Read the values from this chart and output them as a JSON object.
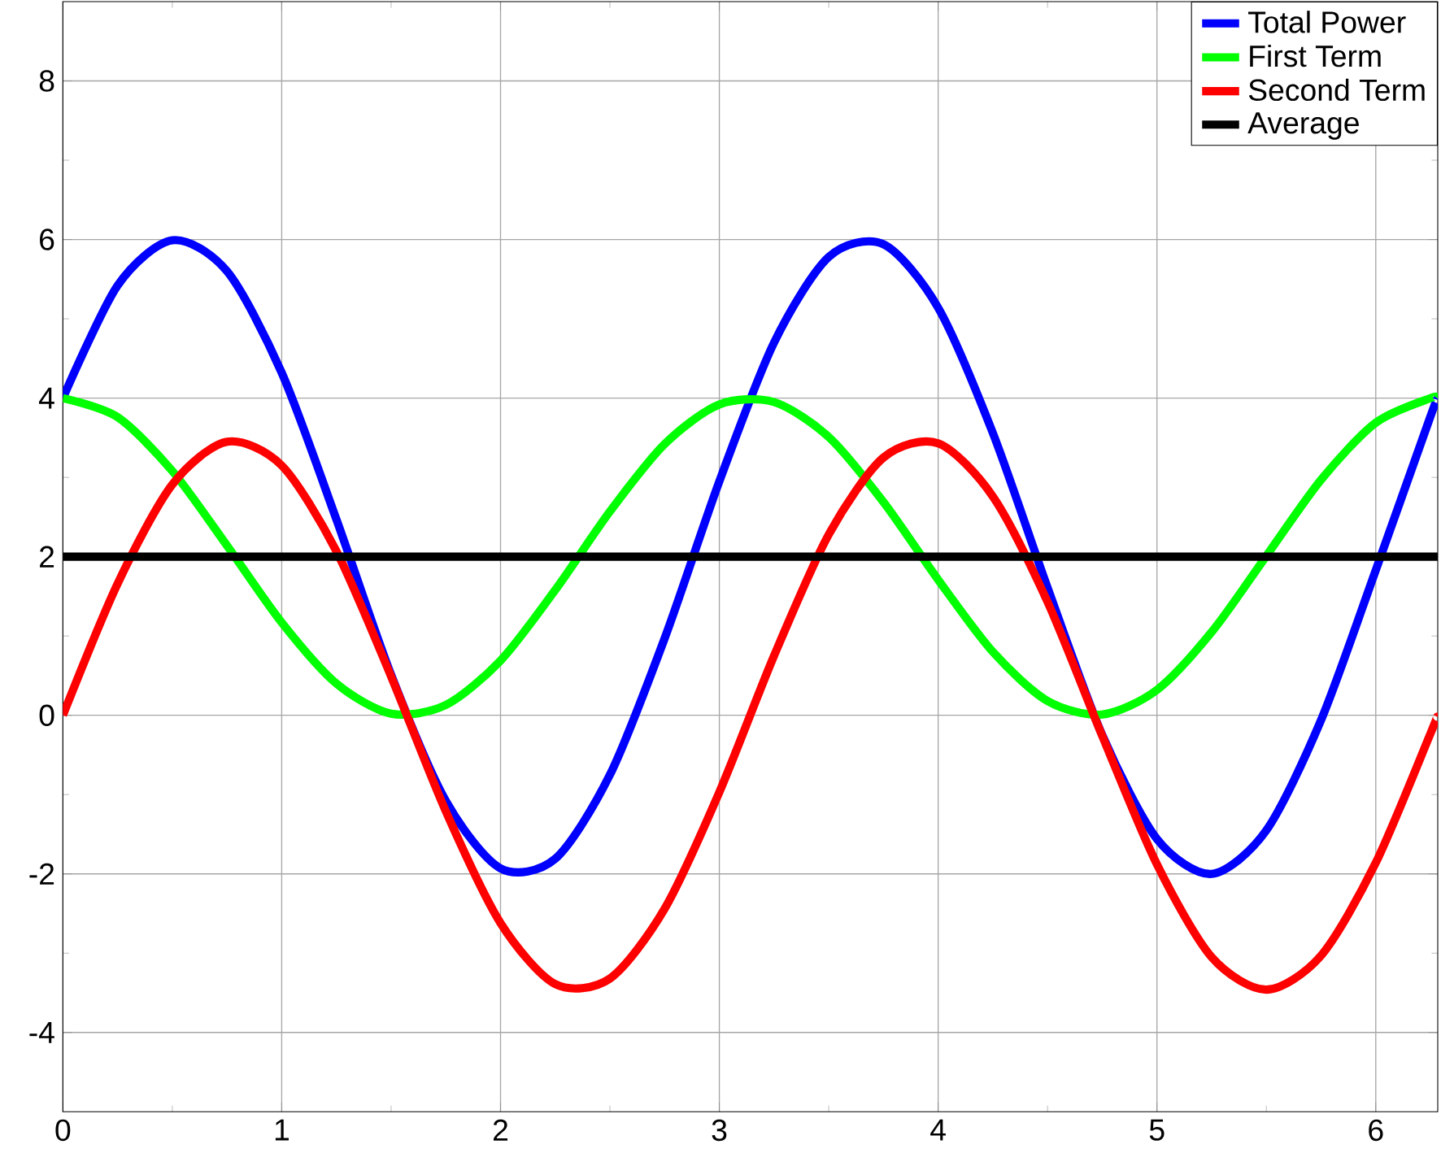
{
  "chart_data": {
    "type": "line",
    "xlim": [
      0,
      6.2832
    ],
    "ylim": [
      -5,
      9
    ],
    "xticks": [
      0,
      1,
      2,
      3,
      4,
      5,
      6
    ],
    "yticks": [
      -4,
      -2,
      0,
      2,
      4,
      6,
      8
    ],
    "grid": true,
    "legend": "top right",
    "line_style": "solid",
    "x": [
      0,
      0.25,
      0.5,
      0.75,
      1.0,
      1.25,
      1.5,
      1.75,
      2.0,
      2.25,
      2.5,
      2.75,
      3.0,
      3.25,
      3.5,
      3.75,
      4.0,
      4.25,
      4.5,
      4.75,
      5.0,
      5.25,
      5.5,
      5.75,
      6.0,
      6.25,
      6.28
    ],
    "series": [
      {
        "name": "Total Power",
        "color": "#0000ff",
        "values": [
          4,
          5.42,
          5.99,
          5.6,
          4.32,
          2.47,
          0.51,
          -1.08,
          -1.93,
          -1.81,
          -0.75,
          0.97,
          2.95,
          4.7,
          5.78,
          5.94,
          5.14,
          3.56,
          1.61,
          -0.25,
          -1.56,
          -2.0,
          -1.45,
          -0.06,
          1.83,
          3.77,
          3.98
        ]
      },
      {
        "name": "First Term",
        "color": "#00ff00",
        "values": [
          4,
          3.76,
          3.08,
          2.14,
          1.17,
          0.4,
          0.02,
          0.13,
          0.69,
          1.58,
          2.57,
          3.42,
          3.92,
          3.95,
          3.51,
          2.69,
          1.71,
          0.8,
          0.18,
          0.01,
          0.32,
          1.05,
          2.01,
          2.97,
          3.69,
          4.0,
          4.0
        ]
      },
      {
        "name": "Second Term",
        "color": "#ff0000",
        "values": [
          0,
          1.66,
          2.91,
          3.45,
          3.15,
          2.07,
          0.49,
          -1.21,
          -2.62,
          -3.39,
          -3.32,
          -2.44,
          -0.97,
          0.75,
          2.28,
          3.25,
          3.43,
          2.76,
          1.43,
          -0.26,
          -1.88,
          -3.05,
          -3.46,
          -3.03,
          -1.86,
          -0.23,
          -0.02
        ]
      },
      {
        "name": "Average",
        "color": "#000000",
        "x": [
          0,
          6.2832
        ],
        "values": [
          2,
          2
        ]
      }
    ]
  }
}
